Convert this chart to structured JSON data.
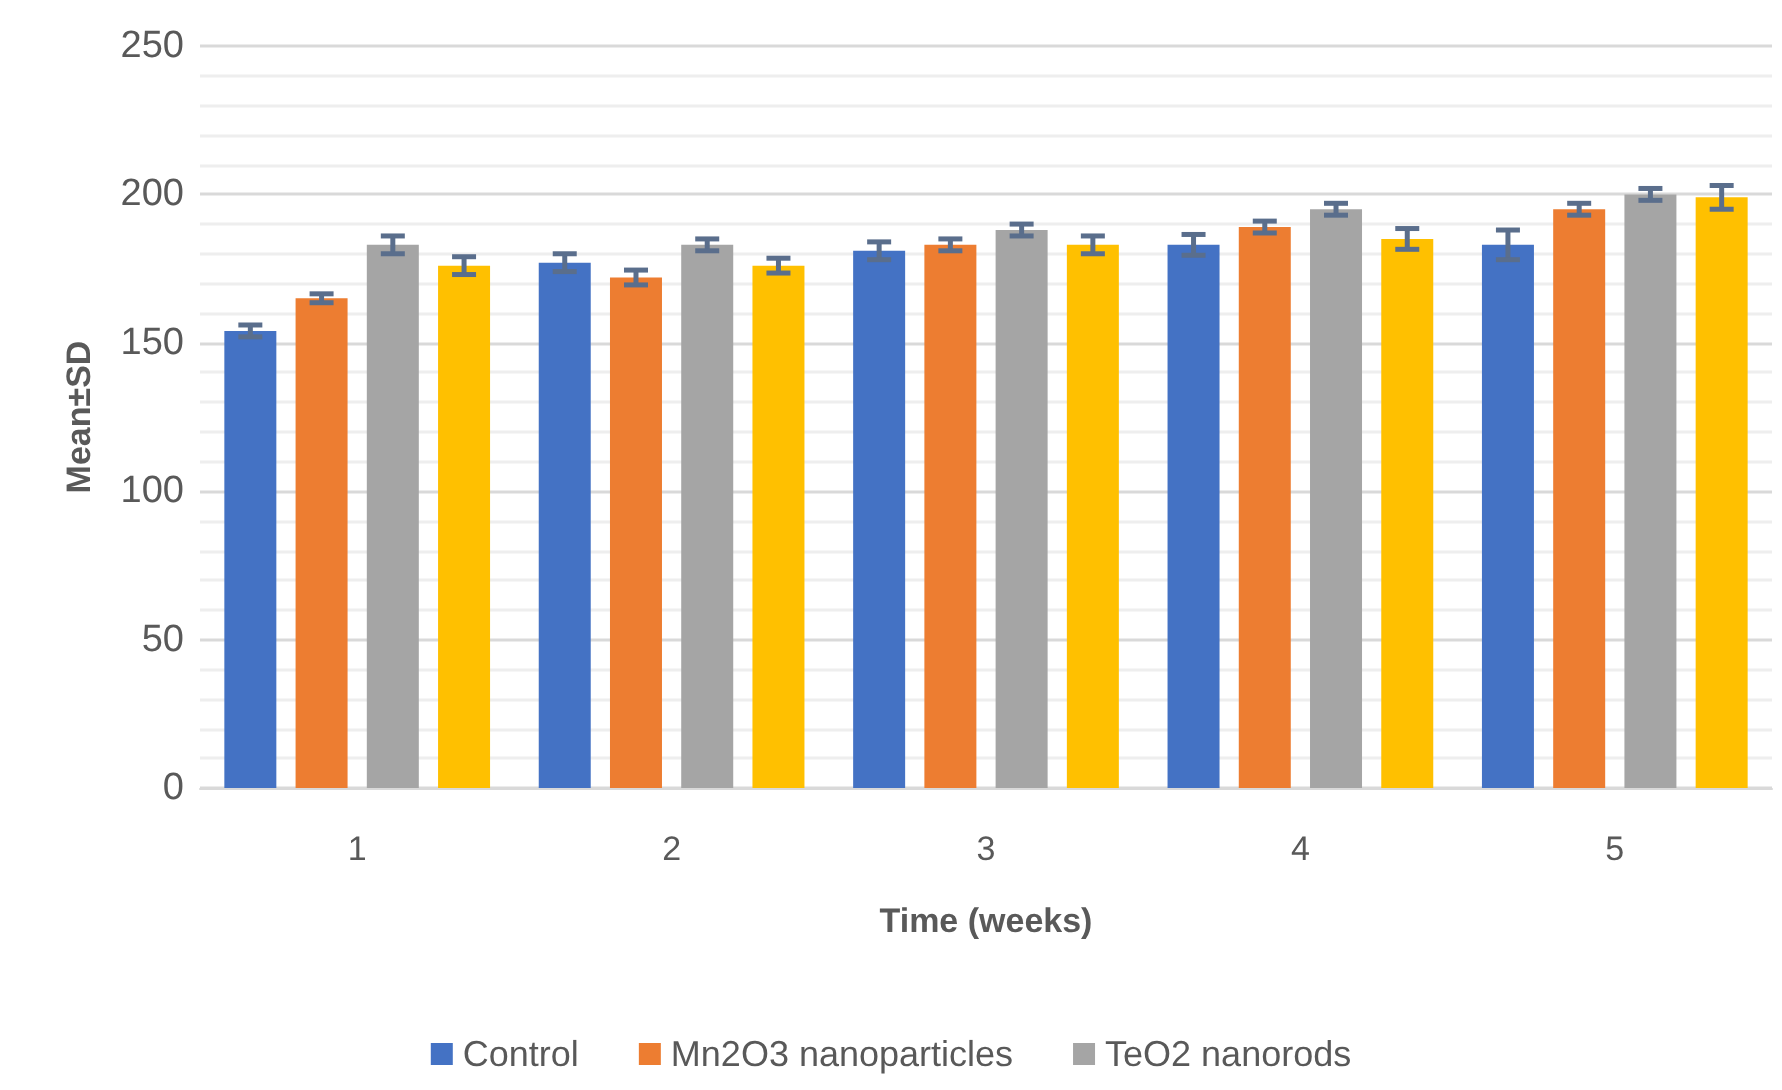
{
  "chart_data": {
    "type": "bar",
    "xlabel": "Time (weeks)",
    "ylabel": "Mean±SD",
    "categories": [
      "1",
      "2",
      "3",
      "4",
      "5"
    ],
    "series": [
      {
        "name": "Control",
        "color": "#4472c4",
        "values": [
          154,
          177,
          181,
          183,
          183
        ],
        "errors": [
          2,
          3,
          3,
          3.5,
          5
        ]
      },
      {
        "name": "Mn2O3 nanoparticles",
        "color": "#ed7d31",
        "values": [
          165,
          172,
          183,
          189,
          195
        ],
        "errors": [
          1.5,
          2.5,
          2,
          2,
          2
        ]
      },
      {
        "name": "TeO2 nanorods",
        "color": "#a5a5a5",
        "values": [
          183,
          183,
          188,
          195,
          200
        ],
        "errors": [
          3,
          2,
          2,
          2,
          2
        ]
      },
      {
        "color": "#ffc000",
        "values": [
          176,
          176,
          183,
          185,
          199
        ],
        "errors": [
          3,
          2.5,
          3,
          3.5,
          4
        ]
      }
    ],
    "ylim": [
      0,
      250
    ],
    "yticks": [
      0,
      50,
      100,
      150,
      200,
      250
    ],
    "grid": "y",
    "legend": "bottom"
  }
}
